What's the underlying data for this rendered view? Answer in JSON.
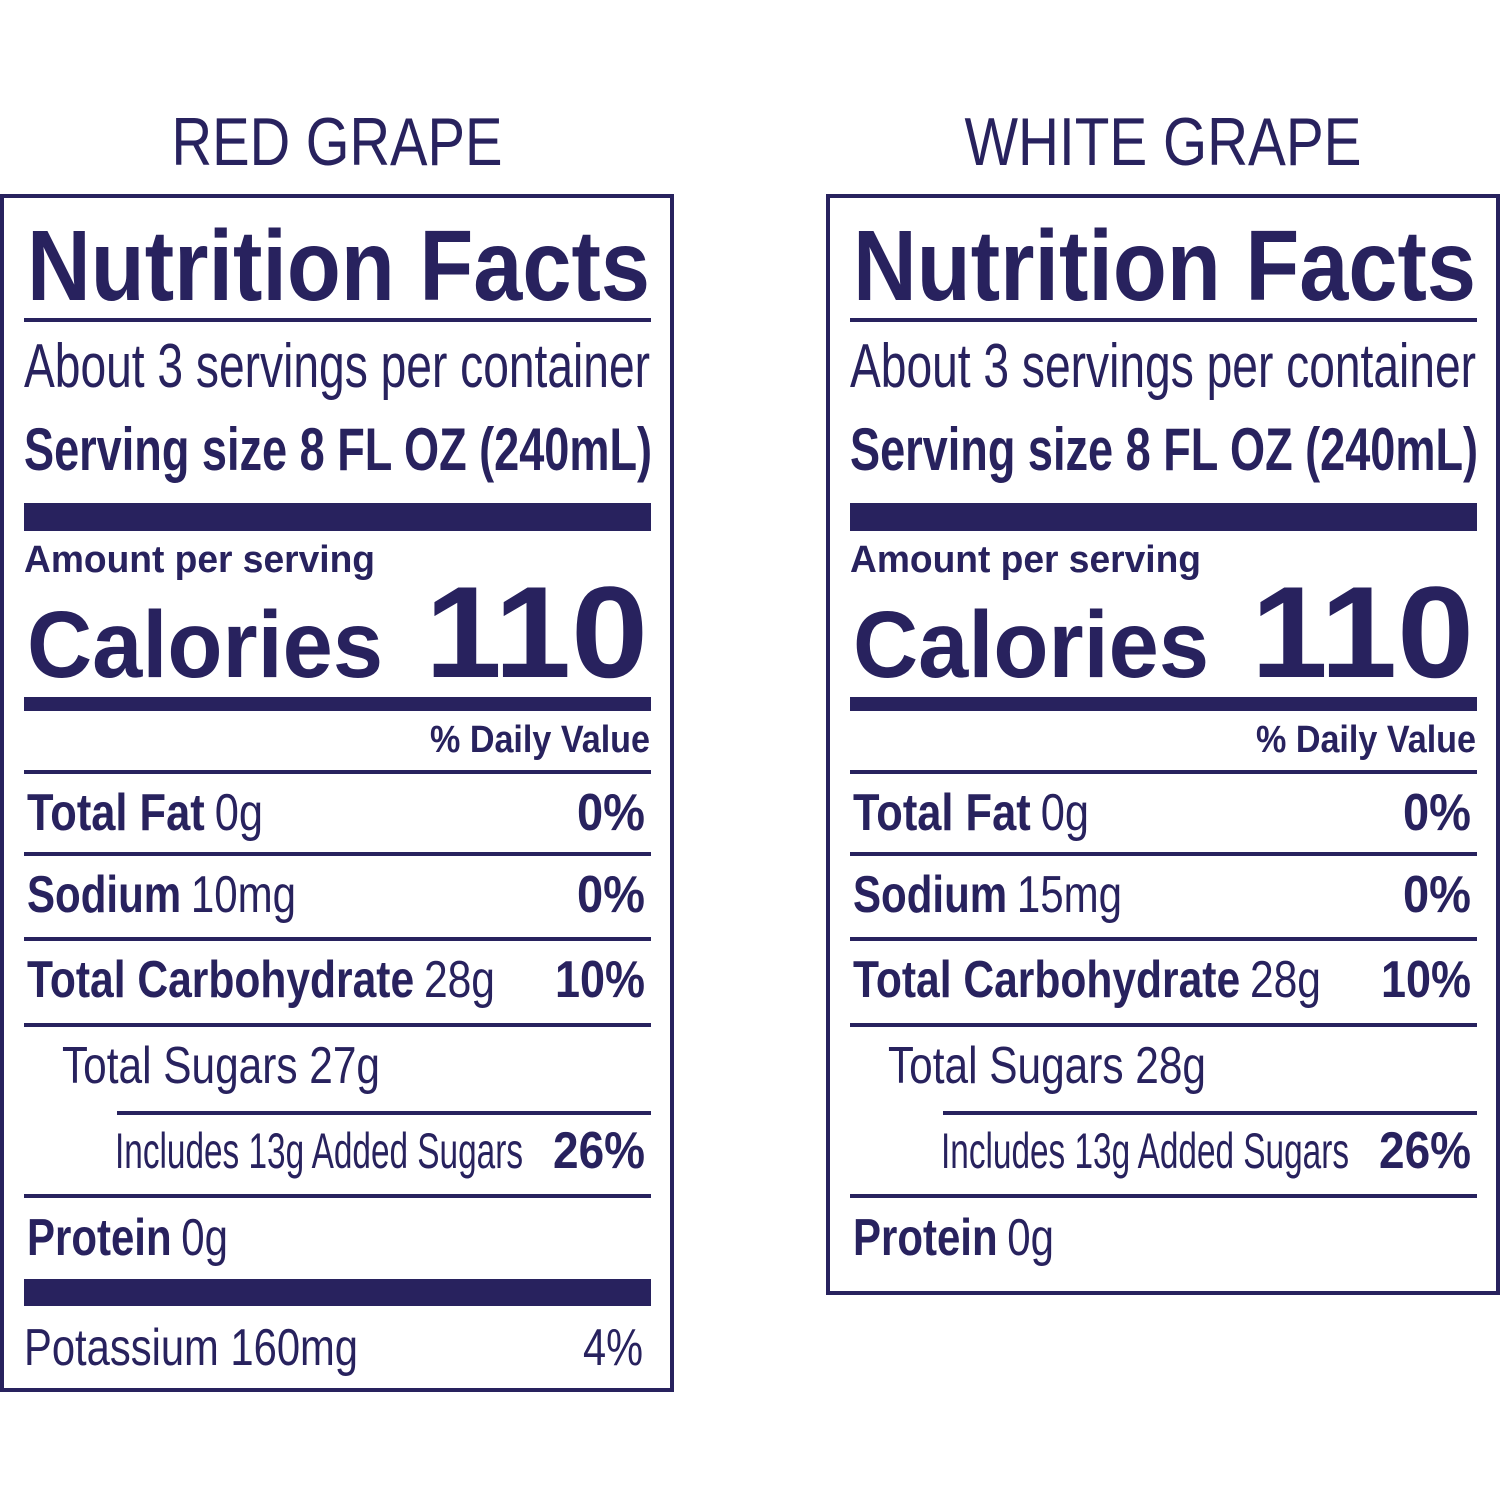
{
  "labels": [
    {
      "title": "RED GRAPE",
      "heading": "Nutrition Facts",
      "servings": "About 3 servings per container",
      "serving_size": "Serving size 8 FL OZ (240mL)",
      "amount_per_serving": "Amount per serving",
      "calories_label": "Calories",
      "calories": "110",
      "daily_value_header": "% Daily Value",
      "total_fat": {
        "name": "Total Fat",
        "amount": "0g",
        "dv": "0%"
      },
      "sodium": {
        "name": "Sodium",
        "amount": "10mg",
        "dv": "0%"
      },
      "total_carbohydrate": {
        "name": "Total Carbohydrate",
        "amount": "28g",
        "dv": "10%"
      },
      "total_sugars": "Total Sugars 27g",
      "added_sugars": {
        "text": "Includes 13g Added Sugars",
        "dv": "26%"
      },
      "protein": {
        "name": "Protein",
        "amount": "0g"
      },
      "potassium": {
        "text": "Potassium 160mg",
        "dv": "4%"
      }
    },
    {
      "title": "WHITE GRAPE",
      "heading": "Nutrition Facts",
      "servings": "About 3 servings per container",
      "serving_size": "Serving size 8 FL OZ (240mL)",
      "amount_per_serving": "Amount per serving",
      "calories_label": "Calories",
      "calories": "110",
      "daily_value_header": "% Daily Value",
      "total_fat": {
        "name": "Total Fat",
        "amount": "0g",
        "dv": "0%"
      },
      "sodium": {
        "name": "Sodium",
        "amount": "15mg",
        "dv": "0%"
      },
      "total_carbohydrate": {
        "name": "Total Carbohydrate",
        "amount": "28g",
        "dv": "10%"
      },
      "total_sugars": "Total Sugars 28g",
      "added_sugars": {
        "text": "Includes 13g Added Sugars",
        "dv": "26%"
      },
      "protein": {
        "name": "Protein",
        "amount": "0g"
      }
    }
  ]
}
